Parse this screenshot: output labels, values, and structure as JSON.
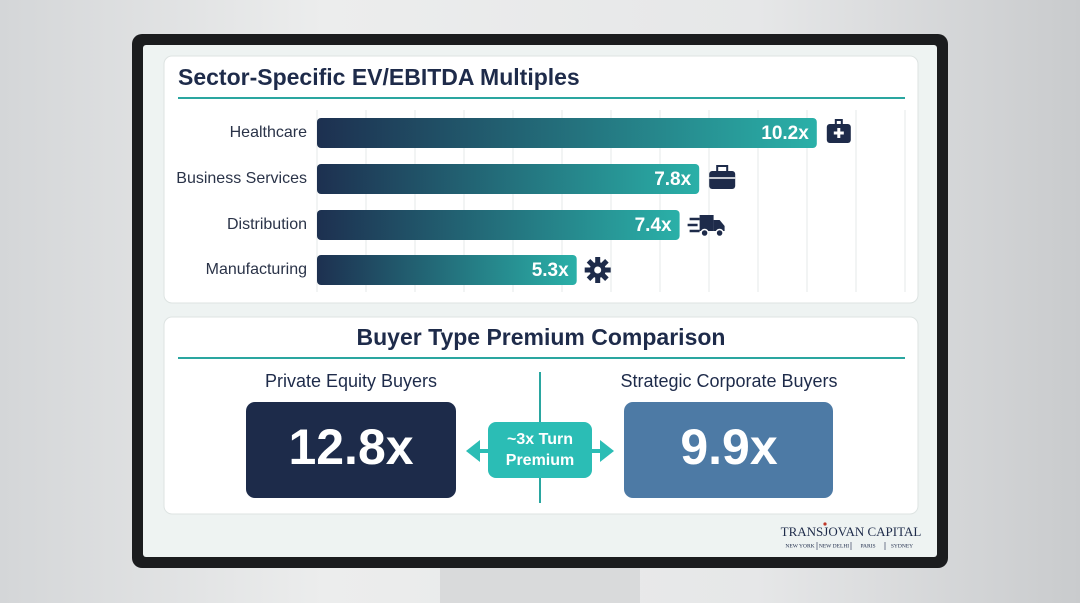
{
  "chart_data": {
    "type": "bar",
    "orientation": "horizontal",
    "title": "Sector-Specific EV/EBITDA Multiples",
    "categories": [
      "Healthcare",
      "Business Services",
      "Distribution",
      "Manufacturing"
    ],
    "values": [
      10.2,
      7.8,
      7.4,
      5.3
    ],
    "value_labels": [
      "10.2x",
      "7.8x",
      "7.4x",
      "5.3x"
    ],
    "colors": [
      "#1d3050",
      "#2ab0a8"
    ],
    "xlim": [
      0,
      12
    ],
    "xticks": [
      0,
      1,
      2,
      3,
      4,
      5,
      6,
      7,
      8,
      9,
      10,
      11,
      12
    ],
    "grid": true
  },
  "comparison": {
    "title": "Buyer Type Premium Comparison",
    "left": {
      "label": "Private Equity Buyers",
      "value": "12.8x"
    },
    "center": [
      "~3x Turn",
      "Premium"
    ],
    "right": {
      "label": "Strategic Corporate Buyers",
      "value": "9.9x"
    }
  },
  "footer": {
    "brand": "TRANSJOVAN CAPITAL",
    "locations": [
      "NEW YORK",
      "NEW DELHI",
      "PARIS",
      "SYDNEY"
    ]
  }
}
